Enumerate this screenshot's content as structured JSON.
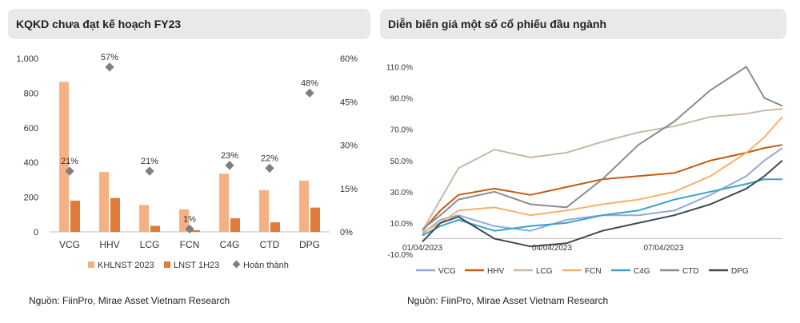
{
  "left_panel": {
    "title": "KQKD chưa đạt kế hoạch FY23",
    "source": "Nguồn: FiinPro, Mirae Asset Vietnam Research"
  },
  "right_panel": {
    "title": "Diễn biến giá một số cổ phiếu đầu ngành",
    "source": "Nguồn: FiinPro, Mirae Asset Vietnam Research"
  },
  "colors": {
    "khlnst": "#f4b183",
    "lnst": "#e07b39",
    "completion": "#808080",
    "VCG": "#8eaadb",
    "HHV": "#c55a11",
    "LCG": "#c9b8a8",
    "FCN": "#f4b26b",
    "C4G": "#3ea3c4",
    "CTD": "#8c8c8c",
    "DPG": "#3b4a55"
  },
  "chart_data": [
    {
      "type": "bar",
      "title": "KQKD chưa đạt kế hoạch FY23",
      "categories": [
        "VCG",
        "HHV",
        "LCG",
        "FCN",
        "C4G",
        "CTD",
        "DPG"
      ],
      "series": [
        {
          "name": "KHLNST 2023",
          "axis": "left",
          "values": [
            865,
            345,
            155,
            130,
            335,
            240,
            295
          ]
        },
        {
          "name": "LNST 1H23",
          "axis": "left",
          "values": [
            180,
            195,
            35,
            10,
            78,
            55,
            140
          ]
        },
        {
          "name": "Hoàn thành",
          "axis": "right",
          "type": "scatter",
          "values": [
            21,
            57,
            21,
            1,
            23,
            22,
            48
          ],
          "labels": [
            "21%",
            "57%",
            "21%",
            "1%",
            "23%",
            "22%",
            "48%"
          ]
        }
      ],
      "left_axis": {
        "ylim": [
          0,
          1000
        ],
        "ticks": [
          0,
          200,
          400,
          600,
          800,
          1000
        ],
        "tick_labels": [
          "0",
          "200",
          "400",
          "600",
          "800",
          "1,000"
        ]
      },
      "right_axis": {
        "ylim": [
          0,
          60
        ],
        "ticks": [
          0,
          15,
          30,
          45,
          60
        ],
        "tick_labels": [
          "0%",
          "15%",
          "30%",
          "45%",
          "60%"
        ]
      },
      "legend": [
        "KHLNST 2023",
        "LNST 1H23",
        "Hoàn thành"
      ],
      "legend_position": "bottom"
    },
    {
      "type": "line",
      "title": "Diễn biến giá một số cổ phiếu đầu ngành",
      "x_labels": [
        "01/04/2023",
        "04/04/2023",
        "07/04/2023"
      ],
      "x_label_positions": [
        0,
        0.36,
        0.67
      ],
      "ylim": [
        -10,
        120
      ],
      "y_ticks": [
        -10,
        10,
        30,
        50,
        70,
        90,
        110
      ],
      "y_tick_labels": [
        "-10.0%",
        "10.0%",
        "30.0%",
        "50.0%",
        "70.0%",
        "90.0%",
        "110.0%"
      ],
      "series": [
        {
          "name": "VCG",
          "x": [
            0,
            0.05,
            0.1,
            0.2,
            0.3,
            0.4,
            0.5,
            0.6,
            0.7,
            0.8,
            0.9,
            0.95,
            1.0
          ],
          "values": [
            3,
            12,
            15,
            8,
            5,
            12,
            15,
            15,
            18,
            28,
            40,
            50,
            58
          ]
        },
        {
          "name": "HHV",
          "x": [
            0,
            0.05,
            0.1,
            0.2,
            0.3,
            0.4,
            0.5,
            0.6,
            0.7,
            0.8,
            0.9,
            0.95,
            1.0
          ],
          "values": [
            5,
            18,
            28,
            32,
            28,
            33,
            38,
            40,
            42,
            50,
            55,
            58,
            60
          ]
        },
        {
          "name": "LCG",
          "x": [
            0,
            0.05,
            0.1,
            0.2,
            0.3,
            0.4,
            0.5,
            0.6,
            0.7,
            0.8,
            0.9,
            0.95,
            1.0
          ],
          "values": [
            5,
            25,
            45,
            57,
            52,
            55,
            62,
            68,
            72,
            78,
            80,
            82,
            83
          ]
        },
        {
          "name": "FCN",
          "x": [
            0,
            0.05,
            0.1,
            0.2,
            0.3,
            0.4,
            0.5,
            0.6,
            0.7,
            0.8,
            0.9,
            0.95,
            1.0
          ],
          "values": [
            4,
            10,
            18,
            20,
            15,
            18,
            22,
            25,
            30,
            40,
            55,
            65,
            78
          ]
        },
        {
          "name": "C4G",
          "x": [
            0,
            0.05,
            0.1,
            0.2,
            0.3,
            0.4,
            0.5,
            0.6,
            0.7,
            0.8,
            0.9,
            0.95,
            1.0
          ],
          "values": [
            2,
            8,
            12,
            5,
            8,
            10,
            15,
            18,
            25,
            30,
            35,
            38,
            38
          ]
        },
        {
          "name": "CTD",
          "x": [
            0,
            0.05,
            0.1,
            0.2,
            0.3,
            0.4,
            0.5,
            0.6,
            0.7,
            0.8,
            0.9,
            0.95,
            1.0
          ],
          "values": [
            6,
            15,
            25,
            30,
            22,
            20,
            38,
            60,
            75,
            95,
            110,
            90,
            85
          ]
        },
        {
          "name": "DPG",
          "x": [
            0,
            0.05,
            0.1,
            0.2,
            0.3,
            0.4,
            0.5,
            0.6,
            0.7,
            0.8,
            0.9,
            0.95,
            1.0
          ],
          "values": [
            -2,
            10,
            14,
            0,
            -5,
            -3,
            5,
            10,
            15,
            22,
            32,
            40,
            50
          ]
        }
      ],
      "legend": [
        "VCG",
        "HHV",
        "LCG",
        "FCN",
        "C4G",
        "CTD",
        "DPG"
      ],
      "legend_position": "bottom"
    }
  ]
}
